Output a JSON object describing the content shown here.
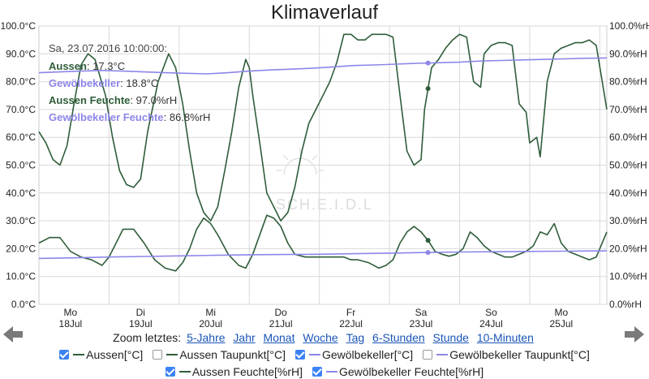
{
  "chart_data": {
    "type": "line",
    "title": "Klimaverlauf",
    "left_axis": {
      "ticks": [
        "0.0°C",
        "10.0°C",
        "20.0°C",
        "30.0°C",
        "40.0°C",
        "50.0°C",
        "60.0°C",
        "70.0°C",
        "80.0°C",
        "90.0°C",
        "100.0°C"
      ],
      "ylim": [
        0,
        100
      ]
    },
    "right_axis": {
      "ticks": [
        "0.0%rH",
        "10.0%rH",
        "20.0%rH",
        "30.0%rH",
        "40.0%rH",
        "50.0%rH",
        "60.0%rH",
        "70.0%rH",
        "80.0%rH",
        "90.0%rH",
        "100.0%rH"
      ],
      "ylim": [
        0,
        100
      ]
    },
    "x_axis": {
      "xlim": [
        0,
        8.1
      ],
      "days": [
        {
          "x": 0.45,
          "weekday": "Mo",
          "date": "18Jul"
        },
        {
          "x": 1.45,
          "weekday": "Di",
          "date": "19Jul"
        },
        {
          "x": 2.45,
          "weekday": "Mi",
          "date": "20Jul"
        },
        {
          "x": 3.45,
          "weekday": "Do",
          "date": "21Jul"
        },
        {
          "x": 4.45,
          "weekday": "Fr",
          "date": "22Jul"
        },
        {
          "x": 5.45,
          "weekday": "Sa",
          "date": "23Jul"
        },
        {
          "x": 6.45,
          "weekday": "So",
          "date": "24Jul"
        },
        {
          "x": 7.45,
          "weekday": "Mo",
          "date": "25Jul"
        }
      ]
    },
    "series": [
      {
        "name": "Aussen[°C]",
        "color": "#2f5d3a",
        "x": [
          0,
          0.15,
          0.3,
          0.45,
          0.6,
          0.75,
          0.9,
          1.0,
          1.1,
          1.2,
          1.35,
          1.5,
          1.65,
          1.8,
          1.95,
          2.05,
          2.15,
          2.25,
          2.35,
          2.45,
          2.55,
          2.7,
          2.85,
          2.95,
          3.05,
          3.15,
          3.25,
          3.35,
          3.45,
          3.55,
          3.65,
          3.8,
          3.95,
          4.05,
          4.15,
          4.25,
          4.35,
          4.45,
          4.55,
          4.7,
          4.85,
          4.95,
          5.05,
          5.15,
          5.25,
          5.35,
          5.45,
          5.55,
          5.65,
          5.75,
          5.85,
          5.95,
          6.05,
          6.15,
          6.25,
          6.35,
          6.45,
          6.55,
          6.65,
          6.75,
          6.85,
          6.95,
          7.05,
          7.15,
          7.25,
          7.35,
          7.45,
          7.55,
          7.65,
          7.75,
          7.85,
          7.95,
          8.1
        ],
        "values": [
          22,
          24,
          24,
          19,
          17,
          16,
          14,
          17,
          22,
          27,
          27,
          22,
          16,
          13,
          12,
          15,
          20,
          27,
          31,
          29,
          25,
          18,
          14,
          13,
          18,
          25,
          32,
          31,
          28,
          22,
          18,
          17,
          17,
          17,
          17,
          17,
          17,
          16,
          16,
          15,
          13,
          14,
          16,
          22,
          26,
          28,
          26,
          23,
          19,
          18,
          17.3,
          18,
          20,
          26,
          24,
          21,
          19,
          18,
          17,
          17,
          18,
          19,
          21,
          26,
          25,
          29,
          22,
          19,
          18,
          17,
          16,
          17,
          26
        ]
      },
      {
        "name": "Gewölbekeller[°C]",
        "color": "#8c86e8",
        "x": [
          0,
          0.5,
          1.0,
          1.5,
          2.0,
          2.5,
          3.0,
          3.5,
          4.0,
          4.5,
          5.0,
          5.5,
          6.0,
          6.5,
          7.0,
          7.5,
          8.1
        ],
        "values": [
          16.5,
          16.7,
          17.0,
          17.2,
          17.4,
          17.6,
          17.8,
          17.9,
          18.0,
          18.2,
          18.4,
          18.6,
          18.8,
          18.9,
          19.0,
          19.1,
          19.2
        ]
      },
      {
        "name": "Aussen Feuchte[%rH]",
        "color": "#2f5d3a",
        "x": [
          0,
          0.1,
          0.2,
          0.3,
          0.4,
          0.5,
          0.6,
          0.7,
          0.8,
          0.95,
          1.05,
          1.15,
          1.25,
          1.35,
          1.45,
          1.55,
          1.7,
          1.85,
          1.95,
          2.05,
          2.15,
          2.25,
          2.35,
          2.45,
          2.55,
          2.65,
          2.75,
          2.85,
          2.95,
          3.0,
          3.05,
          3.15,
          3.25,
          3.35,
          3.45,
          3.55,
          3.65,
          3.75,
          3.85,
          3.95,
          4.05,
          4.15,
          4.25,
          4.35,
          4.45,
          4.55,
          4.65,
          4.75,
          4.85,
          4.95,
          5.05,
          5.15,
          5.25,
          5.35,
          5.45,
          5.5,
          5.6,
          5.7,
          5.8,
          5.9,
          6.0,
          6.1,
          6.2,
          6.3,
          6.35,
          6.45,
          6.55,
          6.65,
          6.75,
          6.85,
          6.95,
          7.0,
          7.1,
          7.15,
          7.25,
          7.35,
          7.45,
          7.55,
          7.65,
          7.75,
          7.85,
          7.95,
          8.1
        ],
        "values": [
          62,
          58,
          52,
          50,
          57,
          72,
          86,
          90,
          88,
          75,
          60,
          48,
          43,
          42,
          45,
          62,
          80,
          90,
          85,
          72,
          55,
          40,
          33,
          30,
          35,
          48,
          62,
          78,
          88,
          85,
          75,
          58,
          40,
          35,
          30,
          33,
          42,
          55,
          65,
          70,
          75,
          80,
          87,
          97,
          97,
          95,
          95,
          97,
          97,
          97,
          96,
          75,
          55,
          50,
          52,
          70,
          85,
          88,
          92,
          95,
          97,
          96,
          80,
          78,
          90,
          93,
          94,
          94,
          93,
          72,
          69,
          58,
          60,
          53,
          80,
          90,
          92,
          93,
          94,
          94,
          95,
          93,
          70
        ]
      },
      {
        "name": "Gewölbekeller Feuchte[%rH]",
        "color": "#8c86e8",
        "x": [
          0,
          0.3,
          0.6,
          0.9,
          1.2,
          1.5,
          1.8,
          2.1,
          2.4,
          2.7,
          3.0,
          3.3,
          3.6,
          3.9,
          4.2,
          4.5,
          4.8,
          5.1,
          5.4,
          5.7,
          6.0,
          6.3,
          6.6,
          6.9,
          7.2,
          7.5,
          7.8,
          8.1
        ],
        "values": [
          83.2,
          83.5,
          83.8,
          84.0,
          83.8,
          83.5,
          83.2,
          83.0,
          82.8,
          83.2,
          83.8,
          84.2,
          84.5,
          84.8,
          85.3,
          85.8,
          86.0,
          86.3,
          86.6,
          86.8,
          87.0,
          87.4,
          87.6,
          87.8,
          88.0,
          88.2,
          88.4,
          88.5
        ]
      }
    ],
    "marker_x": 5.55,
    "legend_placement": "bottom",
    "grid": true
  },
  "tooltip": {
    "timestamp": "Sa, 23.07.2016 10:00:00:",
    "rows": [
      {
        "label": "Aussen",
        "value": ": 17.3°C",
        "color": "#2f5d3a"
      },
      {
        "label": "Gewölbekeller",
        "value": ": 18.8°C",
        "color": "#8c86e8"
      },
      {
        "label": "Aussen Feuchte",
        "value": ": 97.0%rH",
        "color": "#2f5d3a"
      },
      {
        "label": "Gewölbekeller Feuchte",
        "value": ": 86.8%rH",
        "color": "#8c86e8"
      }
    ]
  },
  "watermark": "SCH.E.I.D.L",
  "zoom": {
    "label": "Zoom letztes:",
    "links": [
      "5-Jahre",
      "Jahr",
      "Monat",
      "Woche",
      "Tag",
      "6-Stunden",
      "Stunde",
      "10-Minuten"
    ]
  },
  "legend": {
    "row1": [
      {
        "label": "Aussen[°C]",
        "checked": true,
        "color": "#2f5d3a"
      },
      {
        "label": "Aussen Taupunkt[°C]",
        "checked": false,
        "color": "#2f5d3a"
      },
      {
        "label": "Gewölbekeller[°C]",
        "checked": true,
        "color": "#8c86e8"
      },
      {
        "label": "Gewölbekeller Taupunkt[°C]",
        "checked": false,
        "color": "#8c86e8"
      }
    ],
    "row2": [
      {
        "label": "Aussen Feuchte[%rH]",
        "checked": true,
        "color": "#2f5d3a"
      },
      {
        "label": "Gewölbekeller Feuchte[%rH]",
        "checked": true,
        "color": "#8c86e8"
      }
    ]
  }
}
